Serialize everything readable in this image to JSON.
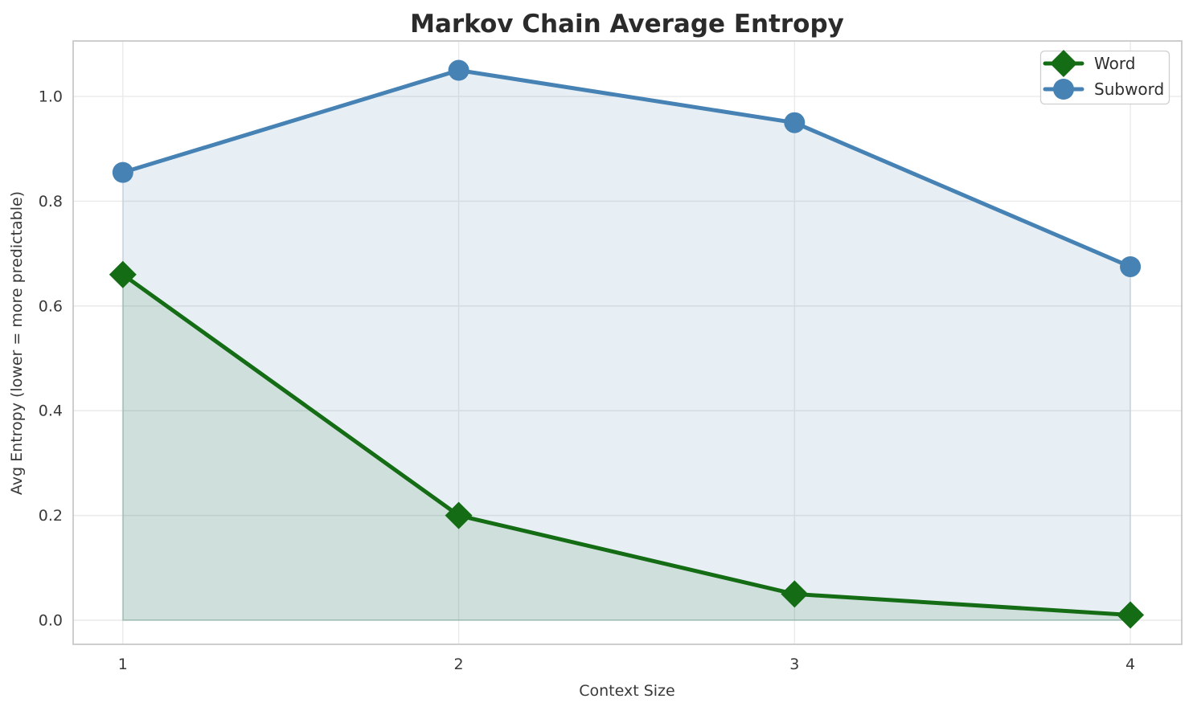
{
  "chart_data": {
    "type": "line",
    "title": "Markov Chain Average Entropy",
    "xlabel": "Context Size",
    "ylabel": "Avg Entropy (lower = more predictable)",
    "x": [
      1,
      2,
      3,
      4
    ],
    "series": [
      {
        "name": "Word",
        "values": [
          0.66,
          0.2,
          0.05,
          0.01
        ],
        "color": "#146c14",
        "fill_color": "rgba(20,108,20,0.11)",
        "marker": "diamond"
      },
      {
        "name": "Subword",
        "values": [
          0.855,
          1.05,
          0.95,
          0.675
        ],
        "color": "#4682b4",
        "fill_color": "rgba(70,130,180,0.13)",
        "marker": "circle"
      }
    ],
    "xticks": [
      "1",
      "2",
      "3",
      "4"
    ],
    "yticks": [
      "0.0",
      "0.2",
      "0.4",
      "0.6",
      "0.8",
      "1.0"
    ],
    "xlim": [
      0.852,
      4.153
    ],
    "ylim": [
      -0.046,
      1.106
    ],
    "fill_baseline": 0,
    "grid": true,
    "legend": {
      "position": "upper right",
      "items": [
        "Word",
        "Subword"
      ]
    },
    "background": "#ffffff"
  }
}
